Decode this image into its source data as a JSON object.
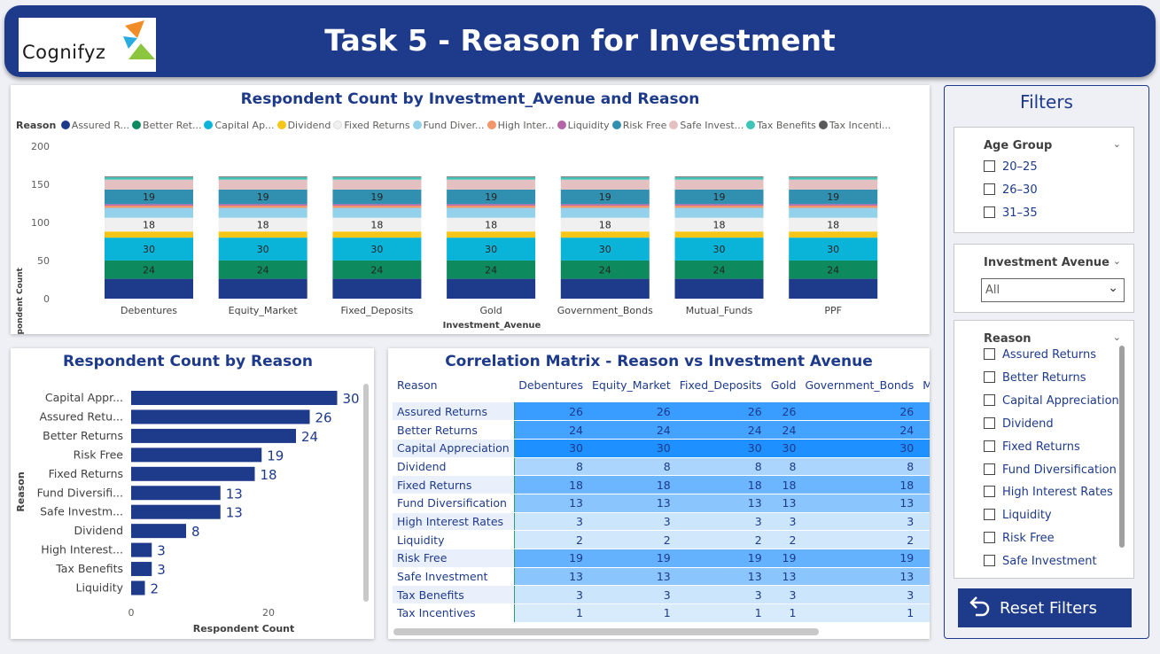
{
  "header": {
    "logo_text": "Cognifyz",
    "title": "Task 5 - Reason for Investment"
  },
  "top_chart": {
    "title": "Respondent Count by Investment_Avenue and Reason",
    "legend_title": "Reason",
    "legend": [
      {
        "label": "Assured R...",
        "color": "#1e3a8a"
      },
      {
        "label": "Better Ret...",
        "color": "#0e8a5f"
      },
      {
        "label": "Capital Ap...",
        "color": "#0ab4d8"
      },
      {
        "label": "Dividend",
        "color": "#f5c518"
      },
      {
        "label": "Fixed Returns",
        "color": "#f0f0f0"
      },
      {
        "label": "Fund Diver...",
        "color": "#93d2ea"
      },
      {
        "label": "High Inter...",
        "color": "#f4956a"
      },
      {
        "label": "Liquidity",
        "color": "#b565a7"
      },
      {
        "label": "Risk Free",
        "color": "#3190b0"
      },
      {
        "label": "Safe Invest...",
        "color": "#e4c0c0"
      },
      {
        "label": "Tax Benefits",
        "color": "#3fc5b8"
      },
      {
        "label": "Tax Incenti...",
        "color": "#5a5a5a"
      }
    ],
    "ylabel": "Respondent Count",
    "xlabel": "Investment_Avenue"
  },
  "bar_chart": {
    "title": "Respondent Count by Reason",
    "ylabel": "Reason",
    "xlabel": "Respondent Count"
  },
  "matrix": {
    "title": "Correlation Matrix - Reason vs Investment Avenue",
    "headers": [
      "Reason",
      "Debentures",
      "Equity_Market",
      "Fixed_Deposits",
      "Gold",
      "Government_Bonds",
      "M"
    ],
    "rows": [
      {
        "reason": "Assured Returns",
        "vals": [
          "26",
          "26",
          "26",
          "26",
          "26"
        ]
      },
      {
        "reason": "Better Returns",
        "vals": [
          "24",
          "24",
          "24",
          "24",
          "24"
        ]
      },
      {
        "reason": "Capital Appreciation",
        "vals": [
          "30",
          "30",
          "30",
          "30",
          "30"
        ]
      },
      {
        "reason": "Dividend",
        "vals": [
          "8",
          "8",
          "8",
          "8",
          "8"
        ]
      },
      {
        "reason": "Fixed Returns",
        "vals": [
          "18",
          "18",
          "18",
          "18",
          "18"
        ]
      },
      {
        "reason": "Fund Diversification",
        "vals": [
          "13",
          "13",
          "13",
          "13",
          "13"
        ]
      },
      {
        "reason": "High Interest Rates",
        "vals": [
          "3",
          "3",
          "3",
          "3",
          "3"
        ]
      },
      {
        "reason": "Liquidity",
        "vals": [
          "2",
          "2",
          "2",
          "2",
          "2"
        ]
      },
      {
        "reason": "Risk Free",
        "vals": [
          "19",
          "19",
          "19",
          "19",
          "19"
        ]
      },
      {
        "reason": "Safe Investment",
        "vals": [
          "13",
          "13",
          "13",
          "13",
          "13"
        ]
      },
      {
        "reason": "Tax Benefits",
        "vals": [
          "3",
          "3",
          "3",
          "3",
          "3"
        ]
      },
      {
        "reason": "Tax Incentives",
        "vals": [
          "1",
          "1",
          "1",
          "1",
          "1"
        ]
      }
    ]
  },
  "filters": {
    "title": "Filters",
    "age_group": {
      "label": "Age Group",
      "options": [
        "20–25",
        "26–30",
        "31–35"
      ]
    },
    "investment_avenue": {
      "label": "Investment Avenue",
      "value": "All"
    },
    "reason": {
      "label": "Reason",
      "options": [
        "Assured Returns",
        "Better Returns",
        "Capital Appreciation",
        "Dividend",
        "Fixed Returns",
        "Fund Diversification",
        "High Interest Rates",
        "Liquidity",
        "Risk Free",
        "Safe Investment"
      ]
    },
    "reset_label": "Reset Filters"
  },
  "chart_data": [
    {
      "type": "bar",
      "stacked": true,
      "title": "Respondent Count by Investment_Avenue and Reason",
      "xlabel": "Investment_Avenue",
      "ylabel": "Respondent Count",
      "ylim": [
        0,
        200
      ],
      "yticks": [
        0,
        50,
        100,
        150,
        200
      ],
      "categories": [
        "Debentures",
        "Equity_Market",
        "Fixed_Deposits",
        "Gold",
        "Government_Bonds",
        "Mutual_Funds",
        "PPF"
      ],
      "series": [
        {
          "name": "Assured R...",
          "values": [
            26,
            26,
            26,
            26,
            26,
            26,
            26
          ]
        },
        {
          "name": "Better Ret...",
          "values": [
            24,
            24,
            24,
            24,
            24,
            24,
            24
          ]
        },
        {
          "name": "Capital Ap...",
          "values": [
            30,
            30,
            30,
            30,
            30,
            30,
            30
          ]
        },
        {
          "name": "Dividend",
          "values": [
            8,
            8,
            8,
            8,
            8,
            8,
            8
          ]
        },
        {
          "name": "Fixed Returns",
          "values": [
            18,
            18,
            18,
            18,
            18,
            18,
            18
          ]
        },
        {
          "name": "Fund Diver...",
          "values": [
            13,
            13,
            13,
            13,
            13,
            13,
            13
          ]
        },
        {
          "name": "High Inter...",
          "values": [
            3,
            3,
            3,
            3,
            3,
            3,
            3
          ]
        },
        {
          "name": "Liquidity",
          "values": [
            2,
            2,
            2,
            2,
            2,
            2,
            2
          ]
        },
        {
          "name": "Risk Free",
          "values": [
            19,
            19,
            19,
            19,
            19,
            19,
            19
          ]
        },
        {
          "name": "Safe Invest...",
          "values": [
            13,
            13,
            13,
            13,
            13,
            13,
            13
          ]
        },
        {
          "name": "Tax Benefits",
          "values": [
            3,
            3,
            3,
            3,
            3,
            3,
            3
          ]
        },
        {
          "name": "Tax Incenti...",
          "values": [
            1,
            1,
            1,
            1,
            1,
            1,
            1
          ]
        }
      ],
      "data_labels_shown_for": [
        "Better Ret...",
        "Capital Ap...",
        "Fixed Returns",
        "Risk Free"
      ],
      "grid": false,
      "legend_position": "top-left"
    },
    {
      "type": "bar",
      "orientation": "horizontal",
      "title": "Respondent Count by Reason",
      "xlabel": "Respondent Count",
      "ylabel": "Reason",
      "xlim": [
        0,
        30
      ],
      "xticks": [
        0,
        20
      ],
      "categories": [
        "Capital Appr...",
        "Assured Retu...",
        "Better Returns",
        "Risk Free",
        "Fixed Returns",
        "Fund Diversifi...",
        "Safe Investm...",
        "Dividend",
        "High Interest...",
        "Tax Benefits",
        "Liquidity"
      ],
      "values": [
        30,
        26,
        24,
        19,
        18,
        13,
        13,
        8,
        3,
        3,
        2
      ],
      "color": "#1e3a8a"
    }
  ]
}
